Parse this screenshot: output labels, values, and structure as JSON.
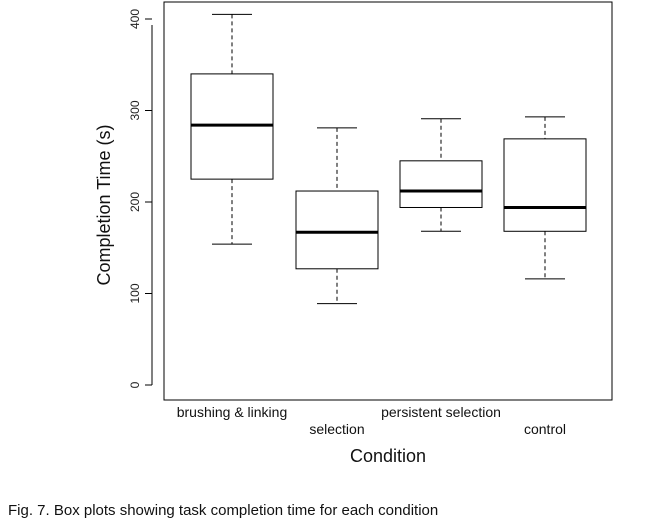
{
  "chart_data": {
    "type": "boxplot",
    "xlabel": "Condition",
    "ylabel": "Completion Time (s)",
    "ylim": [
      -20,
      420
    ],
    "yticks": [
      0,
      100,
      200,
      300,
      400
    ],
    "categories": [
      "brushing & linking",
      "selection",
      "persistent selection",
      "control"
    ],
    "boxes": [
      {
        "category": "brushing & linking",
        "min": 154,
        "q1": 225,
        "median": 284,
        "q3": 340,
        "max": 405
      },
      {
        "category": "selection",
        "min": 89,
        "q1": 127,
        "median": 167,
        "q3": 212,
        "max": 281
      },
      {
        "category": "persistent selection",
        "min": 168,
        "q1": 194,
        "median": 212,
        "q3": 245,
        "max": 291
      },
      {
        "category": "control",
        "min": 116,
        "q1": 168,
        "median": 194,
        "q3": 269,
        "max": 293
      }
    ],
    "grid": false,
    "legend": "none"
  },
  "caption": "Fig. 7. Box plots showing task completion time for each condition"
}
